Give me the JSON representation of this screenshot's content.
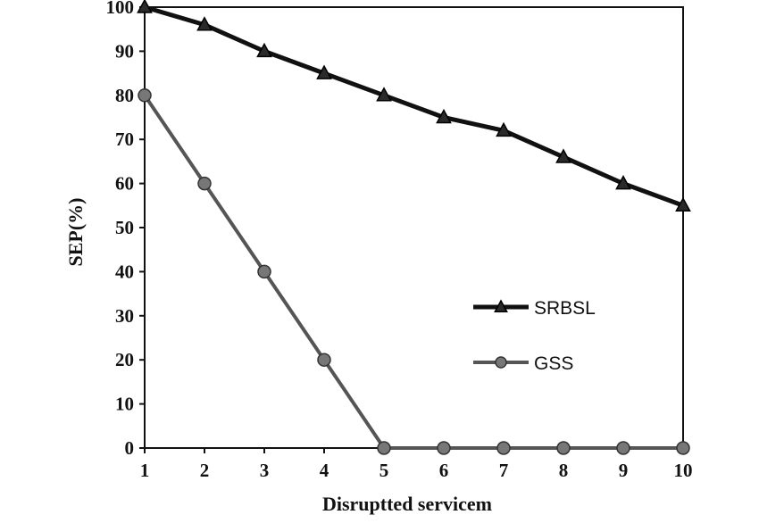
{
  "chart_data": {
    "type": "line",
    "title": "",
    "xlabel": "Disruptted servicem",
    "ylabel": "SEP(%)",
    "x": [
      1,
      2,
      3,
      4,
      5,
      6,
      7,
      8,
      9,
      10
    ],
    "xlim": [
      1,
      10
    ],
    "ylim": [
      0,
      100
    ],
    "yticks": [
      0,
      10,
      20,
      30,
      40,
      50,
      60,
      70,
      80,
      90,
      100
    ],
    "grid": false,
    "legend_position": "right-center",
    "series": [
      {
        "name": "SRBSL",
        "marker": "triangle",
        "color": "#111111",
        "values": [
          100,
          96,
          90,
          85,
          80,
          75,
          72,
          66,
          60,
          55
        ]
      },
      {
        "name": "GSS",
        "marker": "circle",
        "color": "#555555",
        "values": [
          80,
          60,
          40,
          20,
          0,
          0,
          0,
          0,
          0,
          0
        ]
      }
    ]
  }
}
